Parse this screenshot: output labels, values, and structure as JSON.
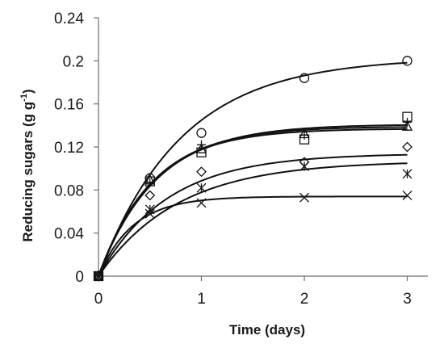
{
  "chart_data": {
    "type": "scatter",
    "title": "",
    "xlabel": "Time (days)",
    "ylabel_main": "Reducing sugars (g g",
    "ylabel_sup": "-1",
    "ylabel_close": ")",
    "xlim": [
      0,
      3.2
    ],
    "ylim": [
      0,
      0.24
    ],
    "xticks": [
      0,
      1,
      2,
      3
    ],
    "xtick_labels": [
      "0",
      "1",
      "2",
      "3"
    ],
    "yticks": [
      0,
      0.04,
      0.08,
      0.12,
      0.16,
      0.2,
      0.24
    ],
    "ytick_labels": [
      "0",
      "0.04",
      "0.08",
      "0.12",
      "0.16",
      "0.2",
      "0.24"
    ],
    "grid": false,
    "legend": "none",
    "series": [
      {
        "marker": "circle",
        "x": [
          0,
          0.5,
          1,
          2,
          3
        ],
        "y": [
          0,
          0.091,
          0.133,
          0.184,
          0.2
        ],
        "fit": {
          "ymax": 0.203,
          "k": 1.25
        }
      },
      {
        "marker": "square",
        "x": [
          0,
          0.5,
          1,
          2,
          3
        ],
        "y": [
          0,
          0.088,
          0.115,
          0.127,
          0.148
        ],
        "fit": {
          "ymax": 0.141,
          "k": 1.8
        }
      },
      {
        "marker": "plus",
        "x": [
          0,
          0.5,
          1,
          2,
          3
        ],
        "y": [
          0,
          0.087,
          0.122,
          0.131,
          0.143
        ],
        "fit": {
          "ymax": 0.139,
          "k": 1.9
        }
      },
      {
        "marker": "triangle",
        "x": [
          0,
          0.5,
          1,
          2,
          3
        ],
        "y": [
          0,
          0.089,
          0.118,
          0.132,
          0.139
        ],
        "fit": {
          "ymax": 0.137,
          "k": 1.95
        }
      },
      {
        "marker": "diamond",
        "x": [
          0,
          0.5,
          1,
          2,
          3
        ],
        "y": [
          0,
          0.075,
          0.097,
          0.106,
          0.12
        ],
        "fit": {
          "ymax": 0.114,
          "k": 1.5
        }
      },
      {
        "marker": "asterisk",
        "x": [
          0,
          0.5,
          1,
          2,
          3
        ],
        "y": [
          0,
          0.062,
          0.082,
          0.102,
          0.095
        ],
        "fit": {
          "ymax": 0.107,
          "k": 1.3
        }
      },
      {
        "marker": "cross",
        "x": [
          0,
          0.5,
          1,
          2,
          3
        ],
        "y": [
          0,
          0.058,
          0.068,
          0.073,
          0.075
        ],
        "fit": {
          "ymax": 0.074,
          "k": 3.0
        }
      }
    ]
  }
}
